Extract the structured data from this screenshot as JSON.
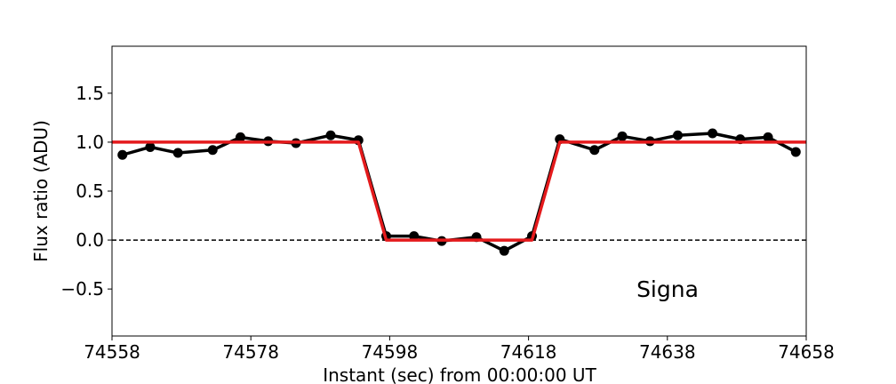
{
  "chart_data": {
    "type": "line",
    "xlabel": "Instant (sec) from 00:00:00 UT",
    "ylabel": "Flux ratio (ADU)",
    "annotation": "Signa",
    "xlim": [
      74558,
      74658
    ],
    "ylim": [
      -0.98,
      1.98
    ],
    "xticks": [
      74558,
      74578,
      74598,
      74618,
      74638,
      74658
    ],
    "yticks": [
      {
        "value": -0.5,
        "label": "−0.5"
      },
      {
        "value": 0,
        "label": "0.0"
      },
      0.5,
      {
        "value": 1,
        "label": "1.0"
      },
      1.5
    ],
    "hline": {
      "value": 0,
      "color": "#000000",
      "style": "dashed"
    },
    "series": [
      {
        "color": "#000000",
        "markers": true,
        "x": [
          74559.5,
          74563.5,
          74567.5,
          74572.5,
          74576.5,
          74580.5,
          74584.5,
          74589.5,
          74593.5,
          74597.5,
          74601.5,
          74605.5,
          74610.5,
          74614.5,
          74618.5,
          74622.5,
          74627.5,
          74631.5,
          74635.5,
          74639.5,
          74644.5,
          74648.5,
          74652.5,
          74656.5
        ],
        "values": [
          0.87,
          0.95,
          0.89,
          0.92,
          1.05,
          1.01,
          0.99,
          1.07,
          1.02,
          0.04,
          0.04,
          -0.01,
          0.03,
          -0.11,
          0.04,
          1.03,
          0.92,
          1.06,
          1.01,
          1.07,
          1.09,
          1.03,
          1.05,
          0.9
        ]
      },
      {
        "color": "#e41a1c",
        "markers": false,
        "x": [
          74558,
          74593.5,
          74597.5,
          74618.5,
          74622.5,
          74658
        ],
        "values": [
          1,
          1,
          0,
          0,
          1,
          1
        ]
      }
    ]
  }
}
